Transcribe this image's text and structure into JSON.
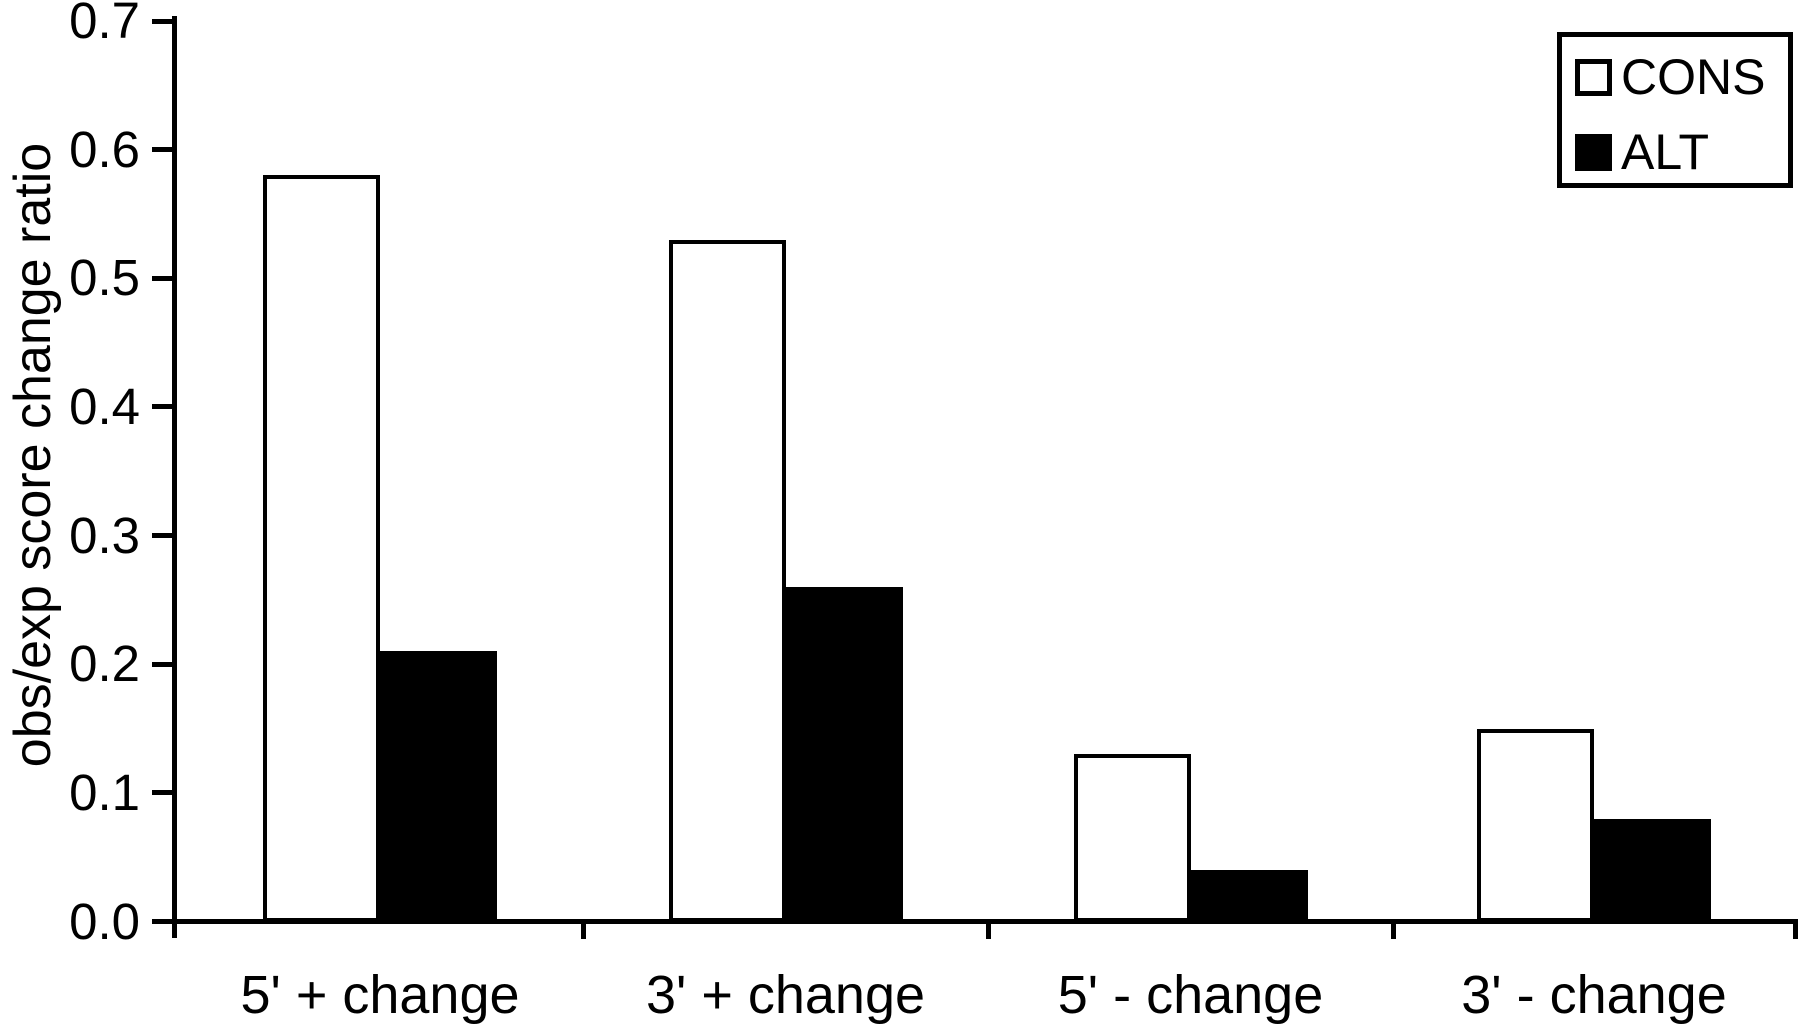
{
  "figure": {
    "background_color": "#ffffff",
    "ink_color": "#000000"
  },
  "chart_data": {
    "type": "bar",
    "title": "",
    "xlabel": "",
    "ylabel": "obs/exp score change ratio",
    "ylim": [
      0.0,
      0.7
    ],
    "grid": false,
    "categories": [
      "5' + change",
      "3' + change",
      "5' - change",
      "3' - change"
    ],
    "series": [
      {
        "name": "CONS",
        "fill": "#ffffff",
        "values": [
          0.58,
          0.53,
          0.13,
          0.15
        ]
      },
      {
        "name": "ALT",
        "fill": "#000000",
        "values": [
          0.21,
          0.26,
          0.04,
          0.08
        ]
      }
    ],
    "yticks": [
      {
        "value": 0.0,
        "label": "0.0"
      },
      {
        "value": 0.1,
        "label": "0.1"
      },
      {
        "value": 0.2,
        "label": "0.2"
      },
      {
        "value": 0.3,
        "label": "0.3"
      },
      {
        "value": 0.4,
        "label": "0.4"
      },
      {
        "value": 0.5,
        "label": "0.5"
      },
      {
        "value": 0.6,
        "label": "0.6"
      },
      {
        "value": 0.7,
        "label": "0.7"
      }
    ],
    "legend": {
      "position": "top-right",
      "entries": [
        "CONS",
        "ALT"
      ]
    }
  }
}
